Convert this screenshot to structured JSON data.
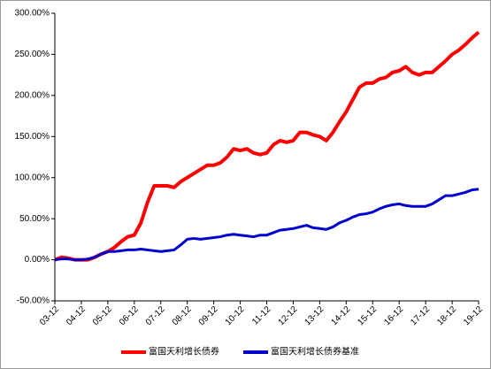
{
  "chart_data": {
    "type": "line",
    "categories": [
      "03-12",
      null,
      null,
      null,
      "04-12",
      null,
      null,
      null,
      "05-12",
      null,
      null,
      null,
      "06-12",
      null,
      null,
      null,
      "07-12",
      null,
      null,
      null,
      "08-12",
      null,
      null,
      null,
      "09-12",
      null,
      null,
      null,
      "10-12",
      null,
      null,
      null,
      "11-12",
      null,
      null,
      null,
      "12-12",
      null,
      null,
      null,
      "13-12",
      null,
      null,
      null,
      "14-12",
      null,
      null,
      null,
      "15-12",
      null,
      null,
      null,
      "16-12",
      null,
      null,
      null,
      "17-12",
      null,
      null,
      null,
      "18-12",
      null,
      null,
      null,
      "19-12"
    ],
    "series": [
      {
        "name": "富国天利增长债券",
        "color": "#ff0000",
        "values": [
          0,
          3,
          2,
          0,
          0,
          0,
          3,
          7,
          10,
          15,
          22,
          28,
          30,
          45,
          70,
          90,
          90,
          90,
          88,
          95,
          100,
          105,
          110,
          115,
          115,
          118,
          125,
          135,
          133,
          135,
          130,
          128,
          130,
          140,
          145,
          143,
          145,
          155,
          155,
          152,
          150,
          145,
          155,
          168,
          180,
          195,
          210,
          215,
          215,
          220,
          222,
          228,
          230,
          235,
          228,
          225,
          228,
          228,
          235,
          242,
          250,
          255,
          262,
          270,
          277
        ]
      },
      {
        "name": "富国天利增长债券基准",
        "color": "#0000cc",
        "values": [
          0,
          1,
          1,
          0,
          0,
          1,
          3,
          7,
          10,
          10,
          11,
          12,
          12,
          13,
          12,
          11,
          10,
          11,
          12,
          18,
          25,
          26,
          25,
          26,
          27,
          28,
          30,
          31,
          30,
          29,
          28,
          30,
          30,
          33,
          36,
          37,
          38,
          40,
          42,
          39,
          38,
          37,
          40,
          45,
          48,
          52,
          55,
          56,
          58,
          62,
          65,
          67,
          68,
          66,
          65,
          65,
          65,
          68,
          73,
          78,
          78,
          80,
          82,
          85,
          86
        ]
      }
    ],
    "ylim": [
      -50,
      300
    ],
    "yticks": [
      {
        "value": -50,
        "label": "-50.00%"
      },
      {
        "value": 0,
        "label": "0.00%"
      },
      {
        "value": 50,
        "label": "50.00%"
      },
      {
        "value": 100,
        "label": "100.00%"
      },
      {
        "value": 150,
        "label": "150.00%"
      },
      {
        "value": 200,
        "label": "200.00%"
      },
      {
        "value": 250,
        "label": "250.00%"
      },
      {
        "value": 300,
        "label": "300.00%"
      }
    ],
    "grid": false,
    "legend": "bottom"
  }
}
